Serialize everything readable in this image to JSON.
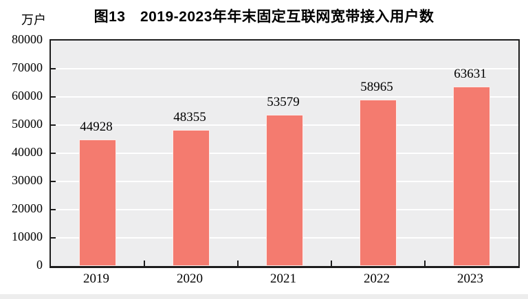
{
  "chart": {
    "title": "图13　2019-2023年年末固定互联网宽带接入用户数",
    "unit_label": "万户"
  },
  "chart_data": {
    "type": "bar",
    "title": "图13 2019-2023年年末固定互联网宽带接入用户数",
    "unit": "万户",
    "categories": [
      "2019",
      "2020",
      "2021",
      "2022",
      "2023"
    ],
    "values": [
      44928,
      48355,
      53579,
      58965,
      63631
    ],
    "data_labels": [
      44928,
      48355,
      53579,
      58965,
      63631
    ],
    "xlabel": "",
    "ylabel": "万户",
    "ylim": [
      0,
      80000
    ],
    "yticks": [
      0,
      10000,
      20000,
      30000,
      40000,
      50000,
      60000,
      70000,
      80000
    ],
    "grid": true,
    "legend_position": "none",
    "colors": {
      "bar_fill": "#f47b6f",
      "bar_edge": "#ffffff",
      "plot_background": "#ededee",
      "gridline": "#ffffff",
      "axis_frame": "#1c1c1c",
      "text": "#000000"
    }
  }
}
